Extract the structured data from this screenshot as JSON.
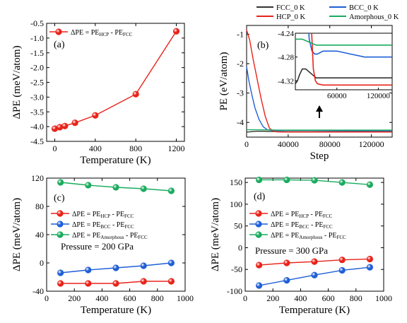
{
  "chart_data": [
    {
      "type": "line",
      "panel": "(a)",
      "xlabel": "Temperature (K)",
      "ylabel": "ΔPE (meV/atom)",
      "xlim": [
        -80,
        1280
      ],
      "ylim": [
        -4.5,
        -0.5
      ],
      "xticks": [
        0,
        400,
        800,
        1200
      ],
      "yticks": [
        -4.5,
        -4.0,
        -3.5,
        -3.0,
        -2.5,
        -2.0,
        -1.5,
        -1.0,
        -0.5
      ],
      "ytick_labels": [
        "-4.5",
        "-4.0",
        "-3.5",
        "-3.0",
        "-2.5",
        "-2.0",
        "-1.5",
        "-1.0",
        "-0.5"
      ],
      "legend_position": "top-left",
      "series": [
        {
          "name": "ΔPE = PE_HCP - PE_FCC",
          "color": "#e8231a",
          "marker": "circle",
          "x": [
            0,
            50,
            100,
            200,
            400,
            800,
            1200
          ],
          "y": [
            -4.07,
            -4.02,
            -3.98,
            -3.87,
            -3.62,
            -2.9,
            -0.77
          ]
        }
      ]
    },
    {
      "type": "line",
      "panel": "(b)",
      "xlabel": "Step",
      "ylabel": "PE (eV/atom)",
      "xlim": [
        0,
        140000
      ],
      "ylim": [
        -4.5,
        -0.7
      ],
      "xticks": [
        0,
        40000,
        80000,
        120000
      ],
      "yticks": [
        -4,
        -3,
        -2,
        -1
      ],
      "legend_position": "top",
      "series": [
        {
          "name": "FCC_0 K",
          "color": "#333333",
          "x": [
            0,
            3000,
            6000,
            10000,
            15000,
            20000,
            25000,
            30000,
            140000
          ],
          "y": [
            -4.325,
            -4.32,
            -4.31,
            -4.3,
            -4.3,
            -4.305,
            -4.31,
            -4.315,
            -4.315
          ]
        },
        {
          "name": "BCC_0 K",
          "color": "#1f5fd6",
          "x": [
            0,
            2000,
            5000,
            8000,
            12000,
            16000,
            20000,
            24000,
            28000,
            32000,
            40000,
            60000,
            80000,
            100000,
            140000
          ],
          "y": [
            -2.1,
            -2.55,
            -3.05,
            -3.5,
            -3.9,
            -4.15,
            -4.25,
            -4.27,
            -4.275,
            -4.275,
            -4.27,
            -4.27,
            -4.275,
            -4.28,
            -4.28
          ]
        },
        {
          "name": "HCP_0 K",
          "color": "#e8231a",
          "x": [
            0,
            3000,
            6000,
            10000,
            14000,
            18000,
            22000,
            26000,
            29000,
            32000,
            40000,
            60000,
            100000,
            140000
          ],
          "y": [
            -0.85,
            -1.2,
            -1.8,
            -2.5,
            -3.2,
            -3.8,
            -4.2,
            -4.3,
            -4.32,
            -4.325,
            -4.327,
            -4.327,
            -4.327,
            -4.327
          ]
        },
        {
          "name": "Amorphous_0 K",
          "color": "#1aab5e",
          "x": [
            0,
            10000,
            20000,
            30000,
            40000,
            60000,
            100000,
            140000
          ],
          "y": [
            -4.25,
            -4.25,
            -4.255,
            -4.26,
            -4.26,
            -4.26,
            -4.26,
            -4.26
          ]
        }
      ],
      "inset": {
        "xlim": [
          0,
          140000
        ],
        "ylim": [
          -4.335,
          -4.24
        ],
        "xticks": [
          60000,
          120000
        ],
        "yticks": [
          -4.32,
          -4.28,
          -4.24
        ],
        "ytick_labels": [
          "-4.32",
          "-4.28",
          "-4.24"
        ],
        "arrow_x": 70000
      }
    },
    {
      "type": "line",
      "panel": "(c)",
      "xlabel": "Temperature (K)",
      "ylabel": "ΔPE (meV/atom)",
      "xlim": [
        0,
        1000
      ],
      "ylim": [
        -40,
        120
      ],
      "xticks": [
        0,
        200,
        400,
        600,
        800,
        1000
      ],
      "yticks": [
        -40,
        0,
        40,
        80,
        120
      ],
      "annotation": "Pressure = 200 GPa",
      "legend_position": "center-left",
      "series": [
        {
          "name": "ΔPE = PE_HCP - PE_FCC",
          "color": "#e8231a",
          "marker": "circle",
          "x": [
            100,
            300,
            500,
            700,
            900
          ],
          "y": [
            -29,
            -29,
            -29,
            -26,
            -26
          ]
        },
        {
          "name": "ΔPE = PE_BCC - PE_FCC",
          "color": "#1f5fd6",
          "marker": "circle",
          "x": [
            100,
            300,
            500,
            700,
            900
          ],
          "y": [
            -14,
            -10,
            -7,
            -4,
            0
          ]
        },
        {
          "name": "ΔPE = PE_Amorphous - PE_FCC",
          "color": "#1aab5e",
          "marker": "circle",
          "x": [
            100,
            300,
            500,
            700,
            900
          ],
          "y": [
            114,
            110,
            107,
            105,
            102
          ]
        }
      ]
    },
    {
      "type": "line",
      "panel": "(d)",
      "xlabel": "Temperature (K)",
      "ylabel": "ΔPE (meV/atom)",
      "xlim": [
        0,
        1000
      ],
      "ylim": [
        -100,
        160
      ],
      "xticks": [
        0,
        200,
        400,
        600,
        800,
        1000
      ],
      "yticks": [
        -100,
        -50,
        0,
        50,
        100,
        150
      ],
      "annotation": "Pressure = 300 GPa",
      "legend_position": "center-left",
      "series": [
        {
          "name": "ΔPE = PE_HCP - PE_FCC",
          "color": "#e8231a",
          "marker": "circle",
          "x": [
            100,
            300,
            500,
            700,
            900
          ],
          "y": [
            -40,
            -35,
            -32,
            -28,
            -26
          ]
        },
        {
          "name": "ΔPE = PE_BCC - PE_FCC",
          "color": "#1f5fd6",
          "marker": "circle",
          "x": [
            100,
            300,
            500,
            700,
            900
          ],
          "y": [
            -87,
            -75,
            -63,
            -52,
            -45
          ]
        },
        {
          "name": "ΔPE = PE_Amorphous - PE_FCC",
          "color": "#1aab5e",
          "marker": "circle",
          "x": [
            100,
            300,
            500,
            700,
            900
          ],
          "y": [
            156,
            156,
            155,
            150,
            145
          ]
        }
      ]
    }
  ]
}
